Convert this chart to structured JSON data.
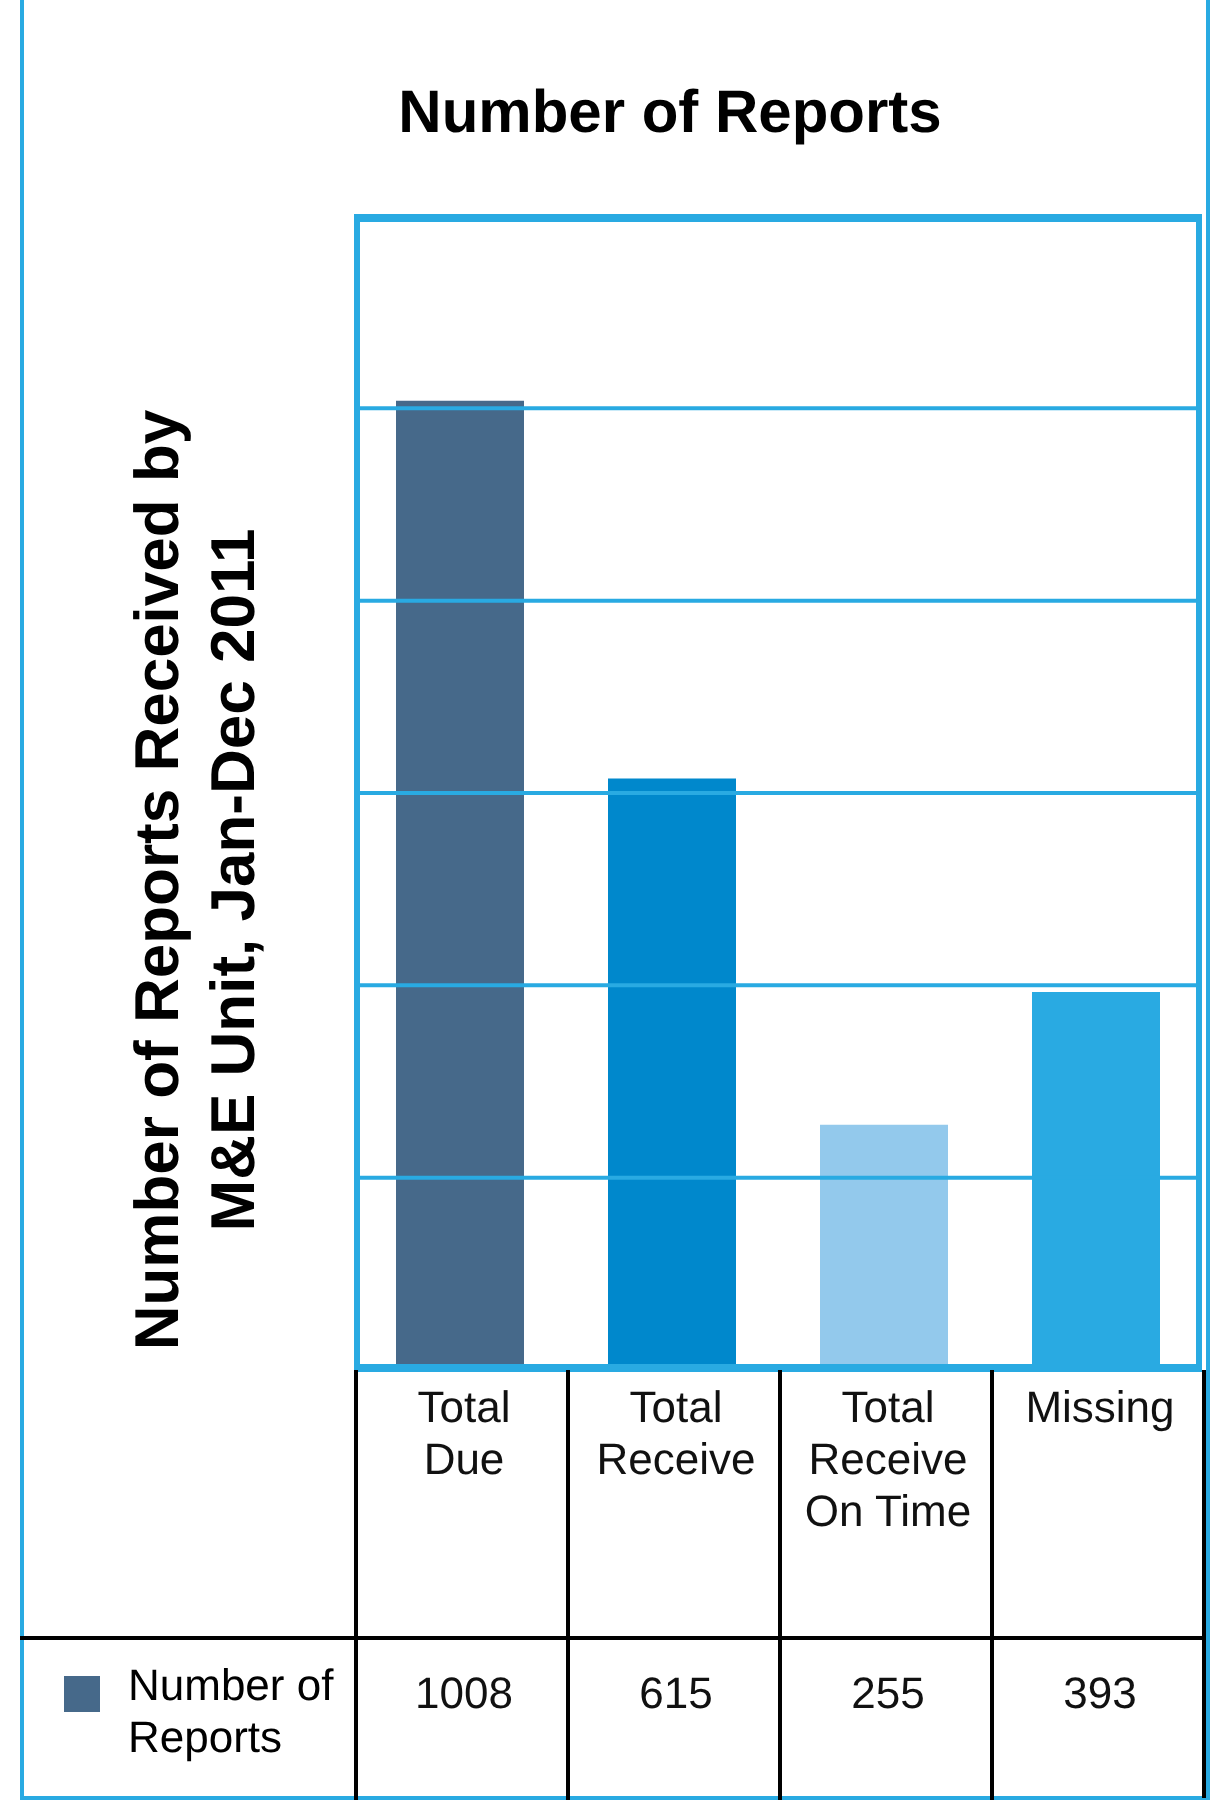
{
  "chart_data": {
    "type": "bar",
    "title": "Number of Reports",
    "ylabel": "Number of Reports Received by M&E Unit, Jan-Dec 2011",
    "categories": [
      "Total Due",
      "Total Receive",
      "Total Receive On Time",
      "Missing"
    ],
    "series": [
      {
        "name": "Number of Reports",
        "color": "#46698a",
        "colors": [
          "#46698a",
          "#0088cc",
          "#93c9ec",
          "#29aae2"
        ],
        "values": [
          1008,
          615,
          255,
          393
        ]
      }
    ],
    "ylim": [
      0,
      1200
    ],
    "yticks": [
      {
        "value": 0,
        "label": null
      },
      {
        "value": 200,
        "label": null
      },
      {
        "value": 400,
        "label": null
      },
      {
        "value": 600,
        "label": null
      },
      {
        "value": 800,
        "label": null
      },
      {
        "value": 1000,
        "label": null
      },
      {
        "value": 1200,
        "label": null
      }
    ],
    "grid": "y",
    "tick_labels": "x",
    "data_labels": true,
    "legend": "bottom left"
  }
}
